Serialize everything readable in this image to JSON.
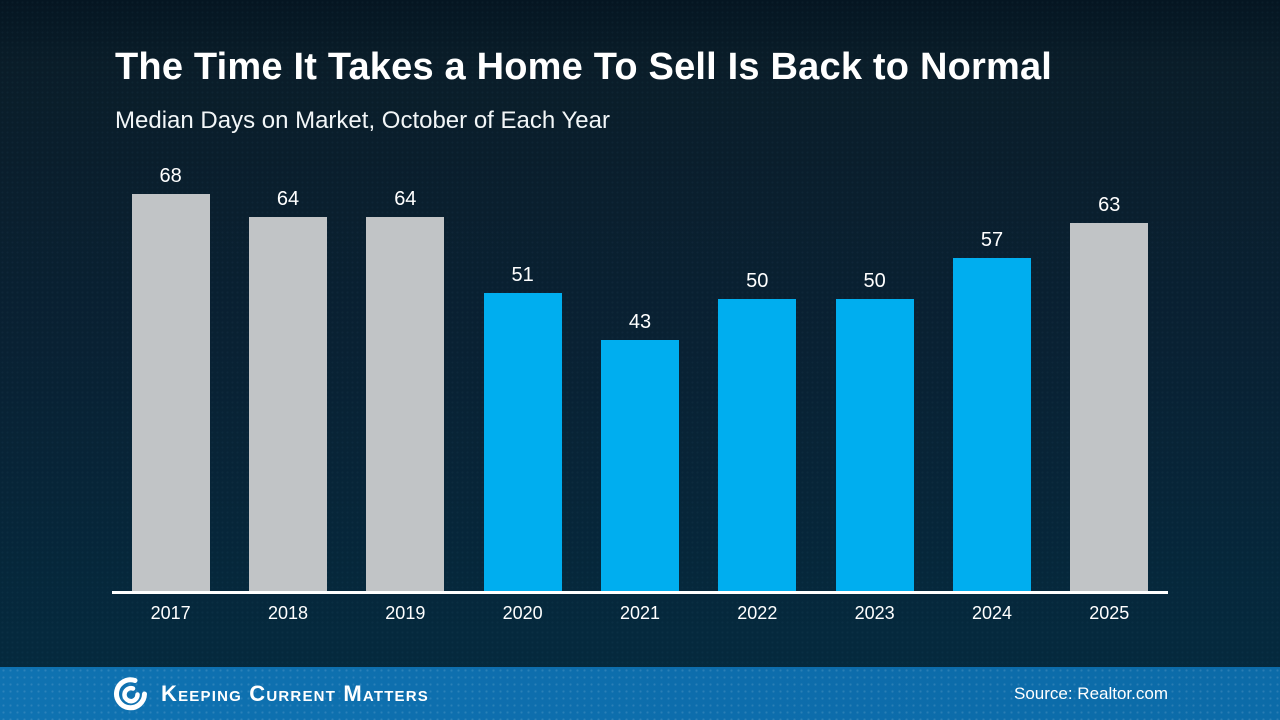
{
  "header": {
    "title": "The Time It Takes a Home To Sell Is Back to Normal",
    "subtitle": "Median Days on Market, October of Each Year"
  },
  "chart_data": {
    "type": "bar",
    "title": "The Time It Takes a Home To Sell Is Back to Normal",
    "subtitle": "Median Days on Market, October of Each Year",
    "categories": [
      "2017",
      "2018",
      "2019",
      "2020",
      "2021",
      "2022",
      "2023",
      "2024",
      "2025"
    ],
    "values": [
      68,
      64,
      64,
      51,
      43,
      50,
      50,
      57,
      63
    ],
    "series": [
      {
        "name": "Median Days on Market",
        "values": [
          68,
          64,
          64,
          51,
          43,
          50,
          50,
          57,
          63
        ]
      }
    ],
    "bar_color_keys": [
      "gray",
      "gray",
      "gray",
      "blue",
      "blue",
      "blue",
      "blue",
      "blue",
      "gray"
    ],
    "colors": {
      "blue": "#00AEEF",
      "gray": "#C1C4C6"
    },
    "xlabel": "",
    "ylabel": "",
    "ylim": [
      0,
      70
    ],
    "grid": false,
    "legend": "none",
    "data_labels": true,
    "axis_line_color": "#FFFFFF",
    "label_color": "#FFFFFF"
  },
  "footer": {
    "brand": "Keeping Current Matters",
    "source": "Source: Realtor.com",
    "logo_icon": "kcm-swirl-icon",
    "background_color": "#0D6DAC"
  }
}
